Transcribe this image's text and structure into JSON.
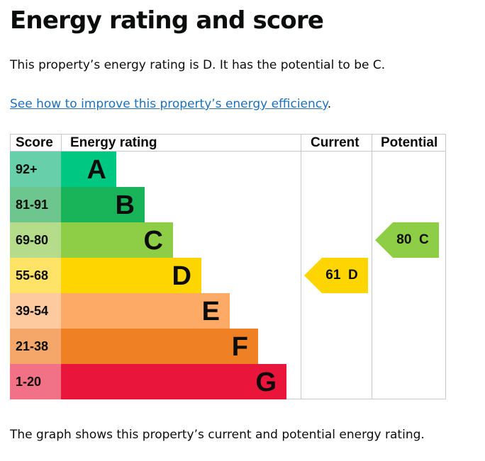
{
  "page": {
    "title": "Energy rating and score",
    "intro": "This property’s energy rating is D. It has the potential to be C.",
    "link_text": "See how to improve this property’s energy efficiency",
    "link_suffix": ".",
    "footnote": "The graph shows this property’s current and potential energy rating."
  },
  "chart_data": {
    "type": "table",
    "columns": [
      "Score",
      "Energy rating",
      "Current",
      "Potential"
    ],
    "bands": [
      {
        "score": "92+",
        "letter": "A",
        "color": "#00c781",
        "score_bg": "#67cfa9"
      },
      {
        "score": "81-91",
        "letter": "B",
        "color": "#19b459",
        "score_bg": "#6dc68d"
      },
      {
        "score": "69-80",
        "letter": "C",
        "color": "#8dce46",
        "score_bg": "#b5dc8a"
      },
      {
        "score": "55-68",
        "letter": "D",
        "color": "#ffd500",
        "score_bg": "#ffe366"
      },
      {
        "score": "39-54",
        "letter": "E",
        "color": "#fcaa65",
        "score_bg": "#fdcaa0"
      },
      {
        "score": "21-38",
        "letter": "F",
        "color": "#ef8023",
        "score_bg": "#f5a769"
      },
      {
        "score": "1-20",
        "letter": "G",
        "color": "#e9153b",
        "score_bg": "#f17187"
      }
    ],
    "current": {
      "score": 61,
      "letter": "D",
      "label": "61  D",
      "color": "#ffd500"
    },
    "potential": {
      "score": 80,
      "letter": "C",
      "label": "80  C",
      "color": "#8dce46"
    }
  }
}
